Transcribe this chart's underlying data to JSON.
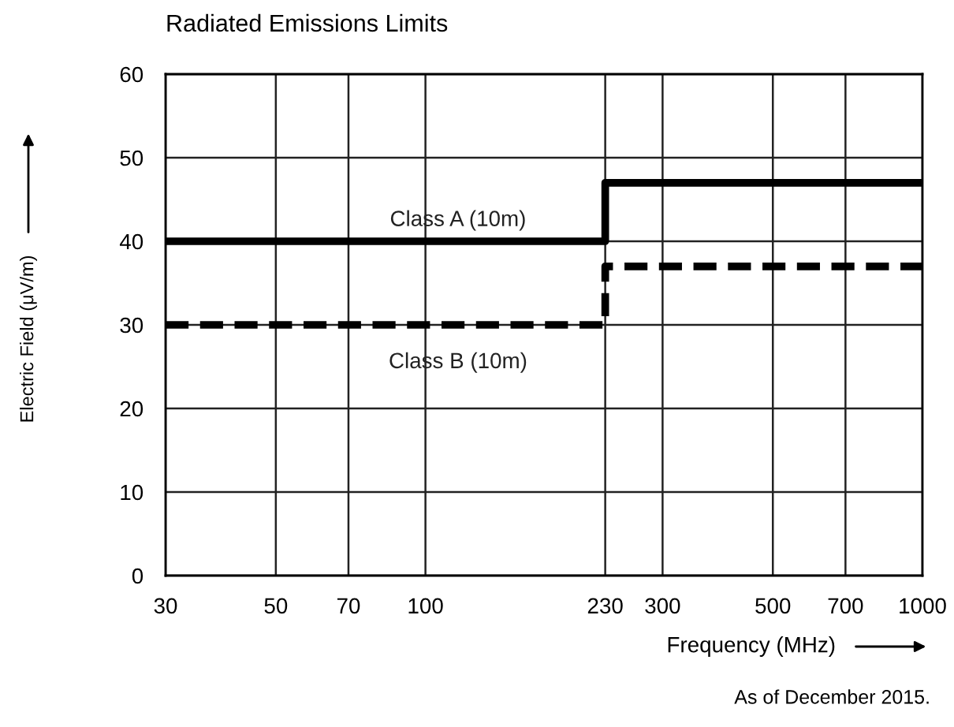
{
  "chart_data": {
    "type": "step",
    "title": "Radiated Emissions Limits",
    "xlabel": "Frequency (MHz)",
    "ylabel": "Electric Field (μV/m)",
    "x": [
      30,
      230,
      1000
    ],
    "series": [
      {
        "name": "Class A (10m)",
        "color": "#000000",
        "values": [
          40,
          47,
          47
        ],
        "line_style": "solid"
      },
      {
        "name": "Class B (10m)",
        "color": "#000000",
        "values": [
          30,
          37,
          37
        ],
        "line_style": "dashed"
      }
    ],
    "log": "x",
    "xlim": [
      30,
      1000
    ],
    "xticks": [
      30,
      50,
      70,
      100,
      230,
      300,
      500,
      700,
      1000
    ],
    "ylim": [
      0,
      60
    ],
    "yticks": [
      0,
      10,
      20,
      30,
      40,
      50,
      60
    ],
    "grid": true,
    "legend": false,
    "annotations": [
      "As of December 2015."
    ]
  }
}
